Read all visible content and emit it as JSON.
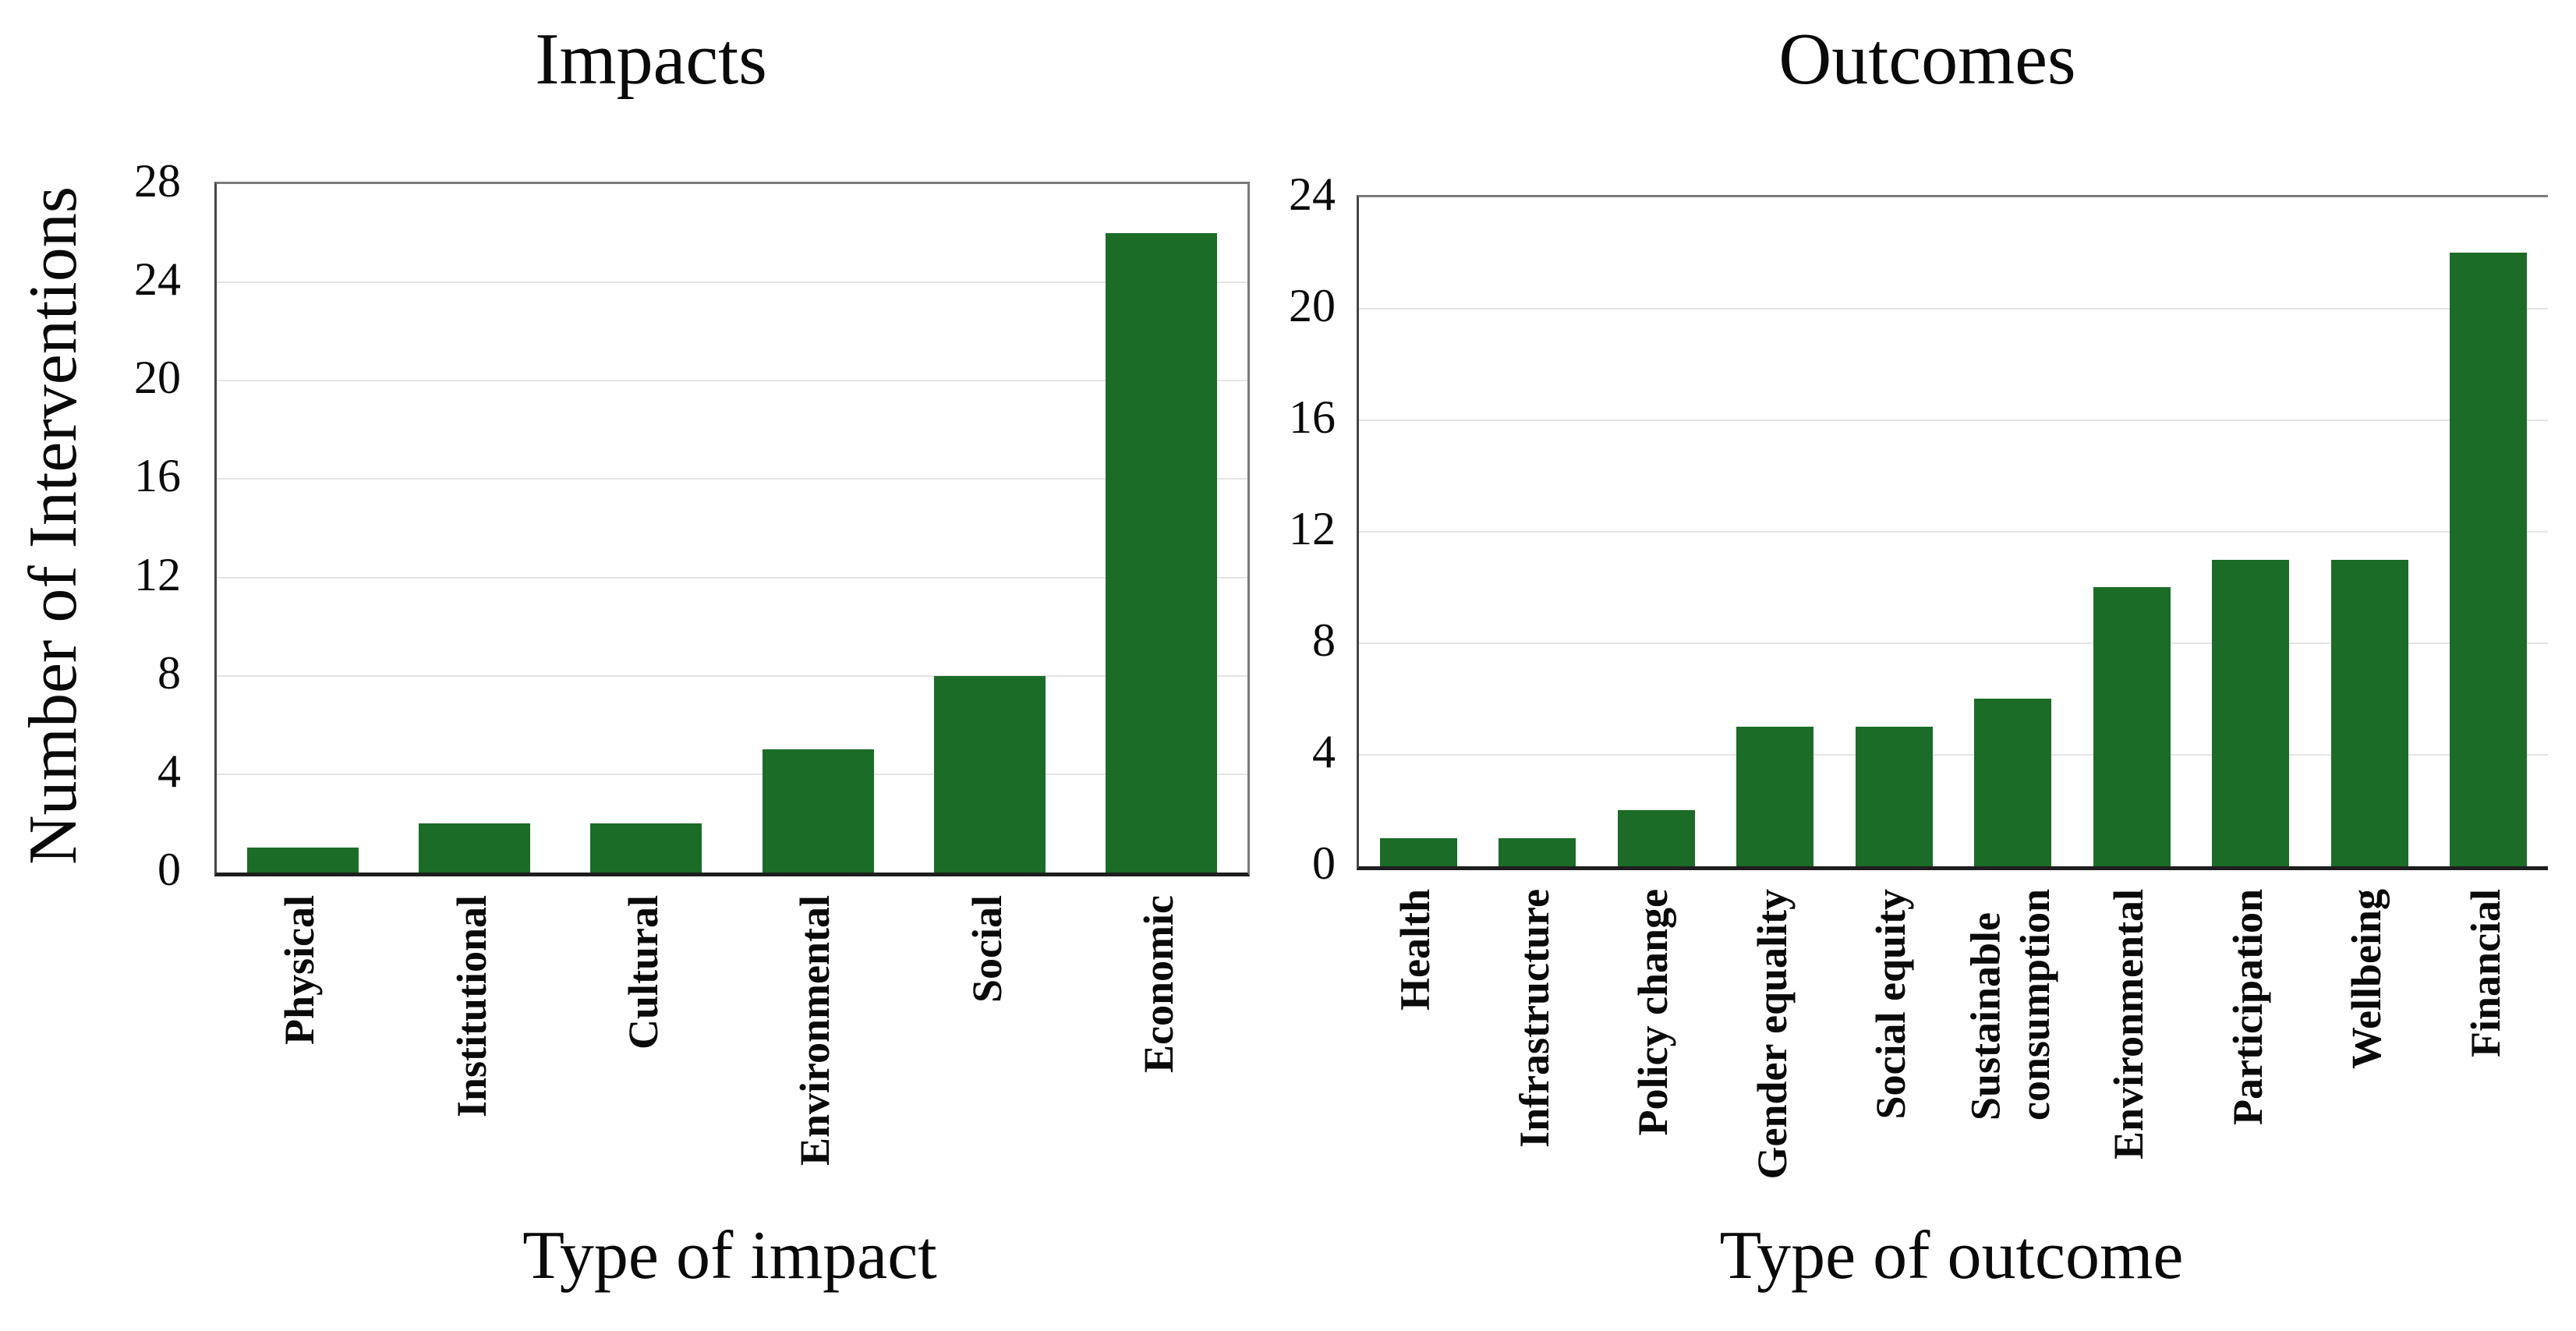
{
  "figure": {
    "background": "#ffffff",
    "text_color": "#0a0a0a",
    "grid_color": "#e4e4e4",
    "border_color": "#7a7a7a",
    "axis_color": "#1e1e1e"
  },
  "chart_data": [
    {
      "type": "bar",
      "title": "Impacts",
      "xlabel": "Type of impact",
      "ylabel": "Number of Interventions",
      "categories": [
        "Physical",
        "Institutional",
        "Cultural",
        "Environmental",
        "Social",
        "Economic"
      ],
      "values": [
        1,
        2,
        2,
        5,
        8,
        26
      ],
      "ylim": [
        0,
        28
      ],
      "ytick_step": 4,
      "yticks": [
        0,
        4,
        8,
        12,
        16,
        20,
        24,
        28
      ],
      "bar_color": "#1b6c27",
      "grid": true,
      "legend": false
    },
    {
      "type": "bar",
      "title": "Outcomes",
      "xlabel": "Type of outcome",
      "ylabel": "",
      "categories": [
        "Health",
        "Infrastructure",
        "Policy change",
        "Gender equality",
        "Social equity",
        "Sustainable consumption",
        "Environmental",
        "Participation",
        "Wellbeing",
        "Financial"
      ],
      "values": [
        1,
        1,
        2,
        5,
        5,
        6,
        10,
        11,
        11,
        22
      ],
      "ylim": [
        0,
        24
      ],
      "ytick_step": 4,
      "yticks": [
        0,
        4,
        8,
        12,
        16,
        20,
        24
      ],
      "bar_color": "#1b6c27",
      "grid": true,
      "legend": false
    }
  ]
}
